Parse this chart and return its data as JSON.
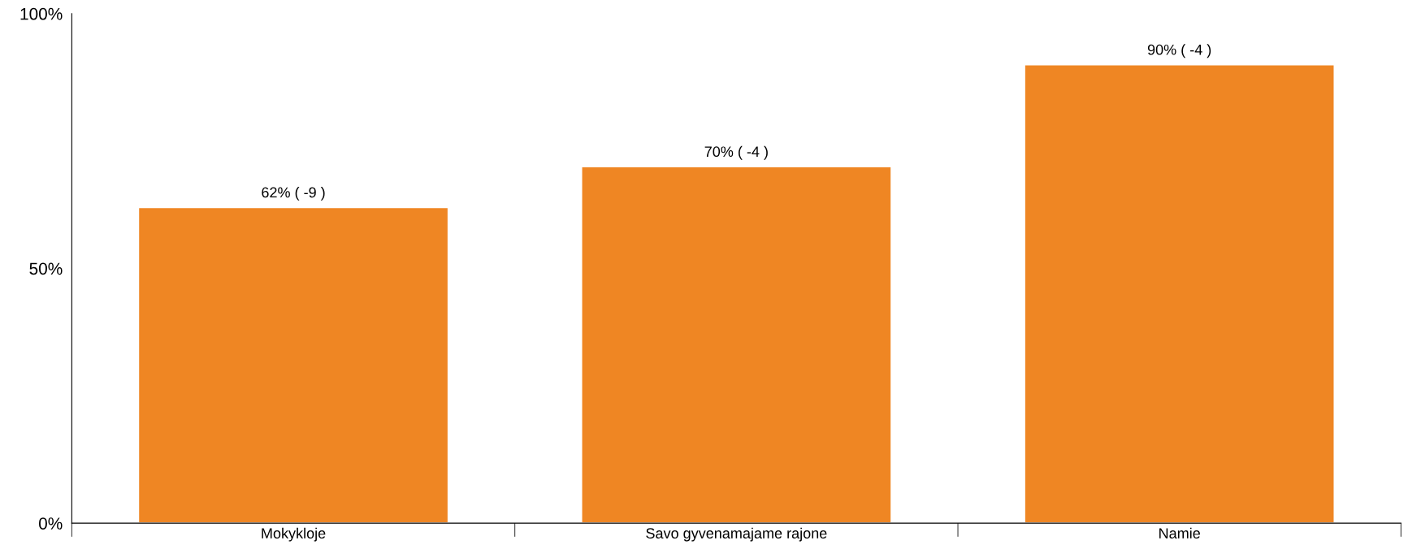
{
  "chart_data": {
    "type": "bar",
    "categories": [
      "Mokykloje",
      "Savo gyvenamajame rajone",
      "Namie"
    ],
    "values": [
      62,
      70,
      90
    ],
    "value_labels": [
      "62% ( -9 )",
      "70% ( -4 )",
      "90% ( -4 )"
    ],
    "color": "#ef8623",
    "ylim": [
      0,
      100
    ],
    "yticks": [
      {
        "value": 0,
        "label": "0%"
      },
      {
        "value": 50,
        "label": "50%"
      },
      {
        "value": 100,
        "label": "100%"
      }
    ],
    "grid": false,
    "legend": false
  }
}
